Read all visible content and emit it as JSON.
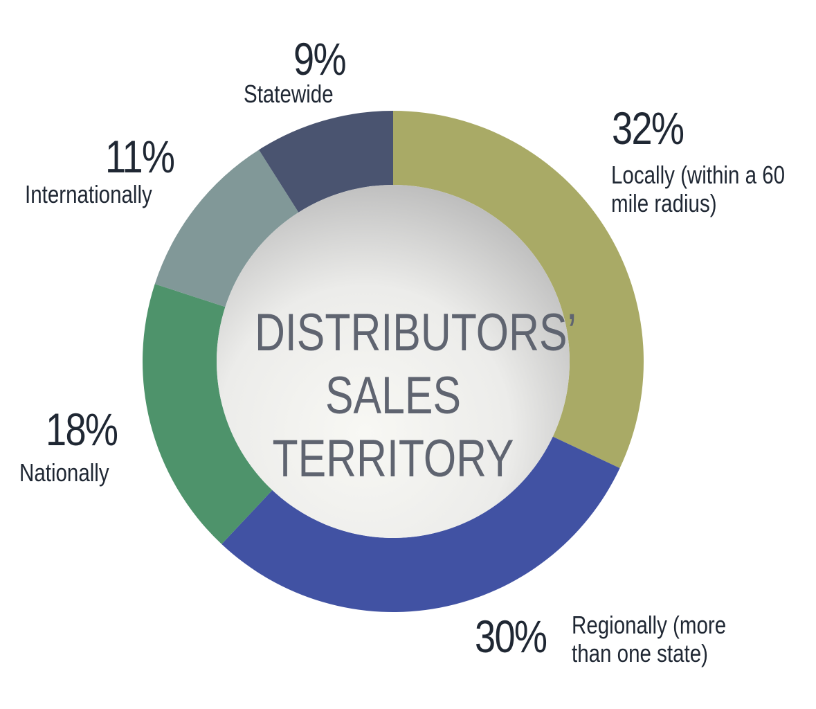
{
  "chart_data": {
    "type": "donut",
    "title": "DISTRIBUTORS’ SALES TERRITORY",
    "categories": [
      "Locally (within a 60 mile radius)",
      "Regionally (more than one state)",
      "Nationally",
      "Internationally",
      "Statewide"
    ],
    "values": [
      32,
      30,
      18,
      11,
      9
    ],
    "value_labels": [
      "32%",
      "30%",
      "18%",
      "11%",
      "9%"
    ],
    "colors": [
      "#a9aa66",
      "#4152a3",
      "#4e936b",
      "#819898",
      "#4a5470"
    ]
  }
}
